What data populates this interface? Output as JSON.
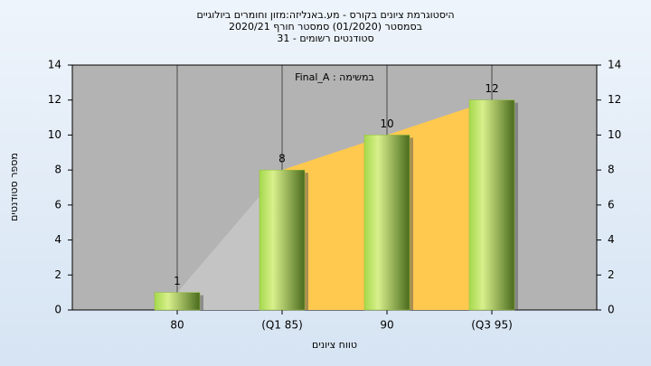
{
  "chart_data": {
    "type": "bar",
    "title": [
      "היסטוגרמת ציונים בקורס - מע.באנליזה:מזון וחומרים ביולוגיים",
      "בסמסטר  (01/2020)  סמסטר חורף  2020/21",
      "סטודנטים רשומים - 31"
    ],
    "annotation": "Final_A : במשימה",
    "x_label": "טווח ציונים",
    "y_label": "מספר סטודנטים",
    "categories": [
      "80",
      "(Q1 85)",
      "90",
      "(Q3 95)"
    ],
    "values": [
      1,
      8,
      10,
      12
    ],
    "value_labels": [
      "1",
      "8",
      "10",
      "12"
    ],
    "color": "#8fbf3a",
    "area_colors": [
      "#c4c4c4",
      "#ffc94f"
    ],
    "ylim": [
      0,
      14
    ],
    "yticks": [
      0,
      2,
      4,
      6,
      8,
      10,
      12,
      14
    ],
    "grid": true
  }
}
